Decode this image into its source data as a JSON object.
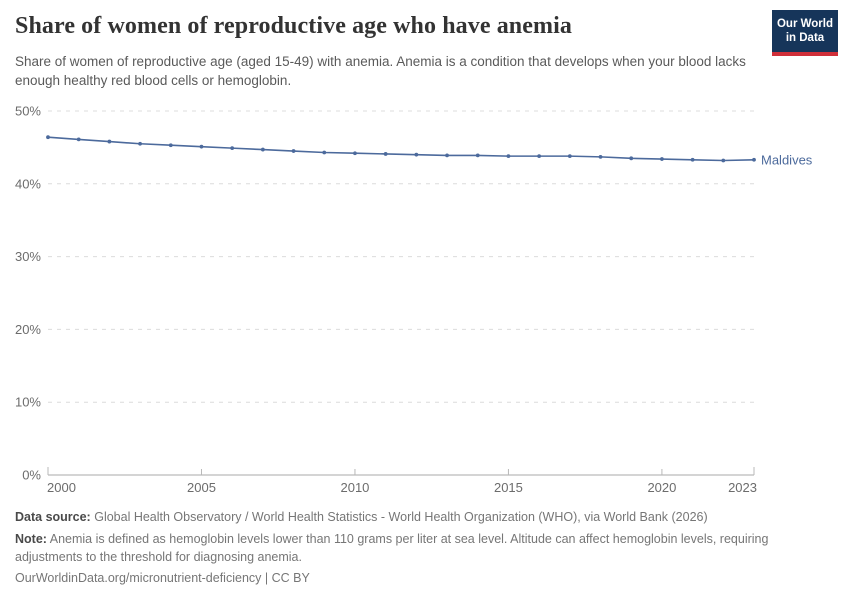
{
  "header": {
    "title": "Share of women of reproductive age who have anemia",
    "subtitle": "Share of women of reproductive age (aged 15-49) with anemia. Anemia is a condition that develops when your blood lacks enough healthy red blood cells or hemoglobin.",
    "logo": {
      "line1": "Our World",
      "line2": "in Data",
      "bg_color": "#16355a",
      "accent_color": "#d02f39"
    }
  },
  "chart_data": {
    "type": "line",
    "title": "Share of women of reproductive age who have anemia",
    "x": [
      2000,
      2001,
      2002,
      2003,
      2004,
      2005,
      2006,
      2007,
      2008,
      2009,
      2010,
      2011,
      2012,
      2013,
      2014,
      2015,
      2016,
      2017,
      2018,
      2019,
      2020,
      2021,
      2022,
      2023
    ],
    "series": [
      {
        "name": "Maldives",
        "color": "#4C6A9C",
        "values": [
          46.4,
          46.1,
          45.8,
          45.5,
          45.3,
          45.1,
          44.9,
          44.7,
          44.5,
          44.3,
          44.2,
          44.1,
          44.0,
          43.9,
          43.9,
          43.8,
          43.8,
          43.8,
          43.7,
          43.5,
          43.4,
          43.3,
          43.2,
          43.3
        ]
      }
    ],
    "entity_label": "Maldives",
    "xlim": [
      2000,
      2023
    ],
    "ylim": [
      0,
      50
    ],
    "x_ticks": [
      2000,
      2005,
      2010,
      2015,
      2020,
      2023
    ],
    "y_ticks": [
      0,
      10,
      20,
      30,
      40,
      50
    ],
    "y_tick_suffix": "%",
    "xlabel": "",
    "ylabel": "",
    "grid": "horizontal dashed",
    "legend_position": "line-end-label",
    "colors": {
      "gridline": "#dcdcdc",
      "axis_line": "#a8a8a8",
      "tick_mark": "#b8b8b8",
      "tick_text": "#6c6c6c"
    }
  },
  "footer": {
    "data_source_label": "Data source:",
    "data_source_text": "Global Health Observatory / World Health Statistics - World Health Organization (WHO), via World Bank (2026)",
    "note_label": "Note:",
    "note_text": "Anemia is defined as hemoglobin levels lower than 110 grams per liter at sea level. Altitude can affect hemoglobin levels, requiring adjustments to the threshold for diagnosing anemia.",
    "citation": "OurWorldinData.org/micronutrient-deficiency | CC BY"
  }
}
